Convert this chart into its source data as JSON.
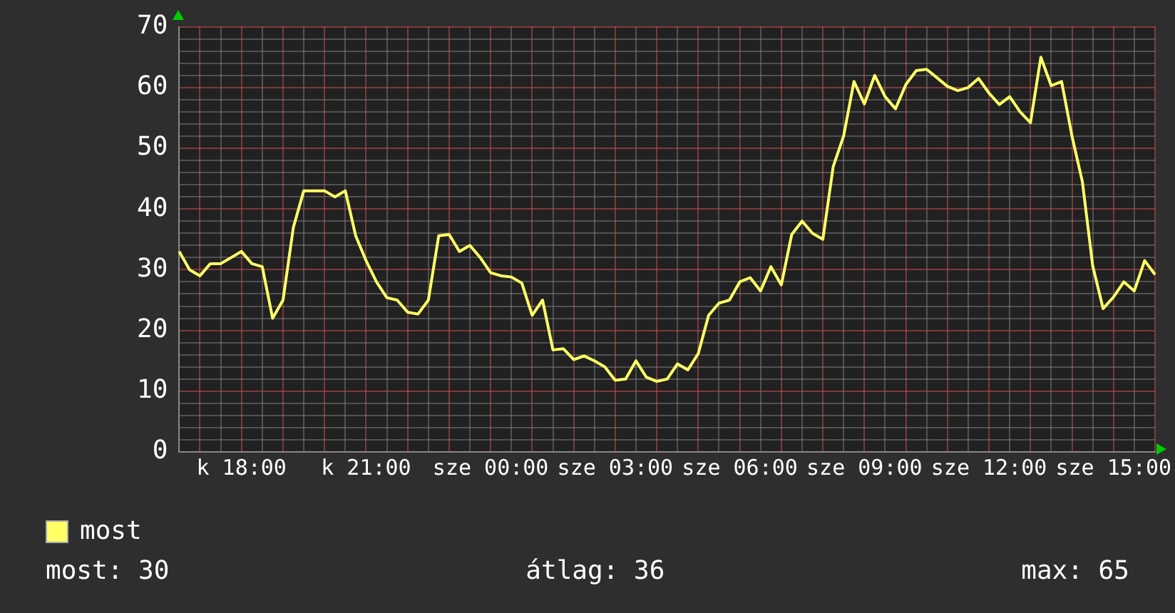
{
  "chart_data": {
    "type": "line",
    "categories": [
      null,
      null,
      null,
      null,
      null,
      null,
      "k 18:00",
      null,
      null,
      null,
      null,
      null,
      null,
      null,
      null,
      null,
      null,
      null,
      "k 21:00",
      null,
      null,
      null,
      null,
      null,
      null,
      null,
      null,
      null,
      null,
      null,
      "sze 00:00",
      null,
      null,
      null,
      null,
      null,
      null,
      null,
      null,
      null,
      null,
      null,
      "sze 03:00",
      null,
      null,
      null,
      null,
      null,
      null,
      null,
      null,
      null,
      null,
      null,
      "sze 06:00",
      null,
      null,
      null,
      null,
      null,
      null,
      null,
      null,
      null,
      null,
      null,
      "sze 09:00",
      null,
      null,
      null,
      null,
      null,
      null,
      null,
      null,
      null,
      null,
      null,
      "sze 12:00",
      null,
      null,
      null,
      null,
      null,
      null,
      null,
      null,
      null,
      null,
      null,
      "sze 15:00",
      null,
      null,
      null,
      null
    ],
    "series": [
      {
        "name": "most",
        "color": "#ffff66",
        "values": [
          33,
          30,
          29,
          31,
          31,
          32,
          33,
          31,
          30.5,
          22,
          25,
          37,
          43,
          43,
          43,
          42,
          43,
          35.6,
          31.5,
          28,
          25.4,
          25,
          23,
          22.7,
          25,
          35.6,
          35.8,
          33,
          34,
          32,
          29.5,
          29,
          28.8,
          27.8,
          22.5,
          25,
          16.8,
          17,
          15.2,
          15.8,
          15,
          14,
          11.8,
          12,
          15,
          12.3,
          11.6,
          12,
          14.5,
          13.5,
          16.2,
          22.5,
          24.5,
          25,
          28,
          28.7,
          26.5,
          30.5,
          27.5,
          35.8,
          38,
          36,
          35,
          47,
          52,
          61,
          57.3,
          62,
          58.5,
          56.5,
          60.5,
          62.8,
          63,
          61.6,
          60.2,
          59.5,
          60,
          61.5,
          59.1,
          57.2,
          58.5,
          56,
          54.2,
          65,
          60.3,
          61,
          52,
          44.5,
          30.6,
          23.6,
          25.5,
          28,
          26.5,
          31.5,
          29.2
        ]
      }
    ],
    "ylim": [
      0,
      70
    ],
    "yticks": [
      0,
      {
        "value": 2,
        "label": null
      },
      {
        "value": 4,
        "label": null
      },
      {
        "value": 6,
        "label": null
      },
      {
        "value": 8,
        "label": null
      },
      10,
      {
        "value": 12,
        "label": null
      },
      {
        "value": 14,
        "label": null
      },
      {
        "value": 16,
        "label": null
      },
      {
        "value": 18,
        "label": null
      },
      20,
      {
        "value": 22,
        "label": null
      },
      {
        "value": 24,
        "label": null
      },
      {
        "value": 26,
        "label": null
      },
      {
        "value": 28,
        "label": null
      },
      30,
      {
        "value": 32,
        "label": null
      },
      {
        "value": 34,
        "label": null
      },
      {
        "value": 36,
        "label": null
      },
      {
        "value": 38,
        "label": null
      },
      40,
      {
        "value": 42,
        "label": null
      },
      {
        "value": 44,
        "label": null
      },
      {
        "value": 46,
        "label": null
      },
      {
        "value": 48,
        "label": null
      },
      50,
      {
        "value": 52,
        "label": null
      },
      {
        "value": 54,
        "label": null
      },
      {
        "value": 56,
        "label": null
      },
      {
        "value": 58,
        "label": null
      },
      60,
      {
        "value": 62,
        "label": null
      },
      {
        "value": 64,
        "label": null
      },
      {
        "value": 66,
        "label": null
      },
      {
        "value": 68,
        "label": null
      },
      70
    ],
    "grid": true,
    "legend": "bottom left",
    "marker": "none",
    "line_style": "solid",
    "annotations": [
      "most: 30",
      "átlag: 36",
      "max: 65"
    ]
  }
}
